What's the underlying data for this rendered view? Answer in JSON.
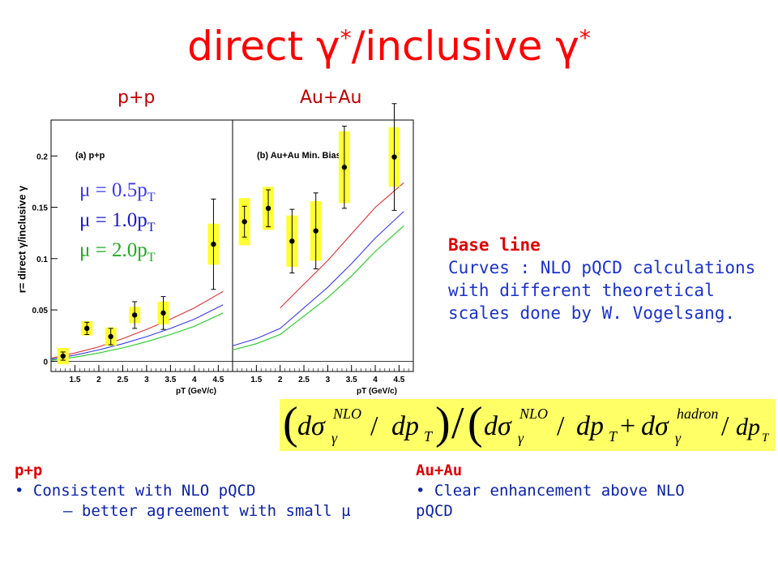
{
  "slide": {
    "title_main": "direct γ",
    "title_sep": "/inclusive γ",
    "title_sup": "*",
    "panel_left": "p+p",
    "panel_right": "Au+Au"
  },
  "baseline": {
    "title": "Base line",
    "text": "Curves : NLO pQCD calculations with different theoretical scales done by W. Vogelsang."
  },
  "formula": {
    "text": "(dσγNLO/dpT)/(dσγNLO/dpT + dσγhadron/dpT)",
    "sigma": "dσ",
    "gamma": "γ",
    "nlo": "NLO",
    "hadron": "hadron",
    "dp": "dp",
    "t": "T"
  },
  "notes": {
    "pp": {
      "head": "p+p",
      "line1": "• Consistent with NLO pQCD",
      "line2": "– better agreement with small µ"
    },
    "auau": {
      "head": "Au+Au",
      "line1": "• Clear enhancement above NLO",
      "line2": "pQCD"
    }
  },
  "legend": [
    {
      "prefix": "μ = ",
      "value": "0.5p",
      "sub": "T",
      "color": "#3a3af0"
    },
    {
      "prefix": "μ = ",
      "value": "1.0p",
      "sub": "T",
      "color": "#1a1acc"
    },
    {
      "prefix": "μ = ",
      "value": "2.0p",
      "sub": "T",
      "color": "#22aa22"
    }
  ],
  "chart_data": {
    "type": "scatter",
    "ylabel": "r= direct γ/inclusive γ",
    "xlabel": "pT (GeV/c)",
    "xlim": [
      1.0,
      4.8
    ],
    "ylim": [
      -0.01,
      0.235
    ],
    "x_ticks": [
      1.5,
      2,
      2.5,
      3,
      3.5,
      4,
      4.5
    ],
    "y_ticks": [
      0,
      0.05,
      0.1,
      0.15,
      0.2
    ],
    "y_tick_labels": [
      "0",
      "0.05",
      "0.1",
      "0.15",
      "0.2"
    ],
    "grid": false,
    "panels": [
      {
        "label": "(a) p+p",
        "points": [
          {
            "x": 1.25,
            "y": 0.005,
            "stat": 0.004,
            "sys": 0.008
          },
          {
            "x": 1.75,
            "y": 0.032,
            "stat": 0.006,
            "sys": 0.007
          },
          {
            "x": 2.25,
            "y": 0.024,
            "stat": 0.008,
            "sys": 0.009
          },
          {
            "x": 2.75,
            "y": 0.045,
            "stat": 0.013,
            "sys": 0.008
          },
          {
            "x": 3.35,
            "y": 0.047,
            "stat": 0.016,
            "sys": 0.011
          },
          {
            "x": 4.4,
            "y": 0.114,
            "stat": 0.044,
            "sys": 0.02
          }
        ],
        "series": [
          {
            "name": "μ = 0.5pT",
            "color": "#e03030",
            "x": [
              1.0,
              1.5,
              2.0,
              2.5,
              3.0,
              3.5,
              4.0,
              4.6
            ],
            "values": [
              0.003,
              0.008,
              0.014,
              0.022,
              0.031,
              0.041,
              0.052,
              0.068
            ]
          },
          {
            "name": "μ = 1.0pT",
            "color": "#3a3af0",
            "x": [
              1.0,
              1.5,
              2.0,
              2.5,
              3.0,
              3.5,
              4.0,
              4.6
            ],
            "values": [
              0.002,
              0.006,
              0.011,
              0.017,
              0.024,
              0.032,
              0.041,
              0.055
            ]
          },
          {
            "name": "μ = 2.0pT",
            "color": "#22cc22",
            "x": [
              1.0,
              1.5,
              2.0,
              2.5,
              3.0,
              3.5,
              4.0,
              4.6
            ],
            "values": [
              0.001,
              0.004,
              0.008,
              0.013,
              0.019,
              0.026,
              0.034,
              0.047
            ]
          }
        ]
      },
      {
        "label": "(b) Au+Au Min. Bias",
        "points": [
          {
            "x": 1.25,
            "y": 0.136,
            "stat": 0.015,
            "sys": 0.023
          },
          {
            "x": 1.75,
            "y": 0.149,
            "stat": 0.018,
            "sys": 0.021
          },
          {
            "x": 2.25,
            "y": 0.117,
            "stat": 0.031,
            "sys": 0.025
          },
          {
            "x": 2.75,
            "y": 0.127,
            "stat": 0.037,
            "sys": 0.029
          },
          {
            "x": 3.35,
            "y": 0.189,
            "stat": 0.04,
            "sys": 0.035
          },
          {
            "x": 4.4,
            "y": 0.199,
            "stat": 0.052,
            "sys": 0.029
          }
        ],
        "series": [
          {
            "name": "μ = 0.5pT",
            "color": "#e03030",
            "x": [
              2.0,
              2.5,
              3.0,
              3.5,
              4.0,
              4.6
            ],
            "values": [
              0.052,
              0.075,
              0.098,
              0.124,
              0.15,
              0.174
            ]
          },
          {
            "name": "μ = 1.0pT",
            "color": "#3a3af0",
            "x": [
              1.0,
              1.5,
              2.0,
              2.5,
              3.0,
              3.5,
              4.0,
              4.6
            ],
            "values": [
              0.015,
              0.022,
              0.032,
              0.052,
              0.072,
              0.095,
              0.12,
              0.146
            ]
          },
          {
            "name": "μ = 2.0pT",
            "color": "#22cc22",
            "x": [
              1.0,
              1.5,
              2.0,
              2.5,
              3.0,
              3.5,
              4.0,
              4.6
            ],
            "values": [
              0.011,
              0.017,
              0.026,
              0.044,
              0.062,
              0.083,
              0.107,
              0.132
            ]
          }
        ]
      }
    ]
  }
}
